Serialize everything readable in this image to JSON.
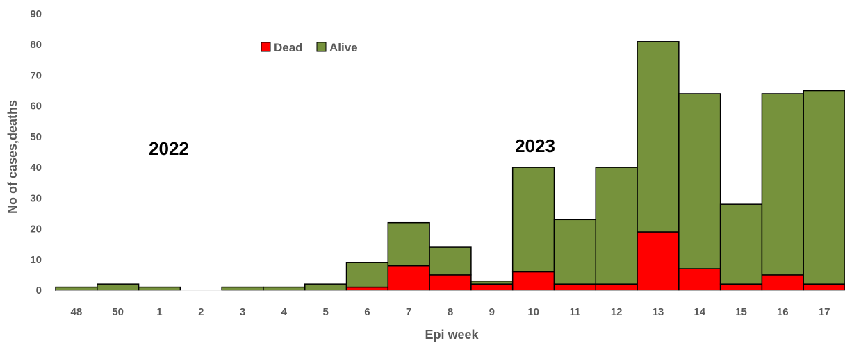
{
  "chart_data": {
    "type": "bar",
    "stacked": true,
    "categories": [
      "48",
      "50",
      "1",
      "2",
      "3",
      "4",
      "5",
      "6",
      "7",
      "8",
      "9",
      "10",
      "11",
      "12",
      "13",
      "14",
      "15",
      "16",
      "17"
    ],
    "series": [
      {
        "name": "Dead",
        "color": "#ff0000",
        "values": [
          0,
          0,
          0,
          0,
          0,
          0,
          0,
          1,
          8,
          5,
          2,
          6,
          2,
          2,
          19,
          7,
          2,
          5,
          2
        ]
      },
      {
        "name": "Alive",
        "color": "#76923c",
        "values": [
          1,
          2,
          1,
          0,
          1,
          1,
          2,
          8,
          14,
          9,
          1,
          34,
          21,
          38,
          62,
          57,
          26,
          59,
          63
        ]
      }
    ],
    "xlabel": "Epi week",
    "ylabel": "No of cases,deaths",
    "ylim": [
      0,
      90
    ],
    "yticks": [
      0,
      10,
      20,
      30,
      40,
      50,
      60,
      70,
      80,
      90
    ],
    "annotations": [
      "2022",
      "2023"
    ],
    "legend_position": "top-left",
    "grid": false,
    "bar_outline_color": "#000000"
  }
}
